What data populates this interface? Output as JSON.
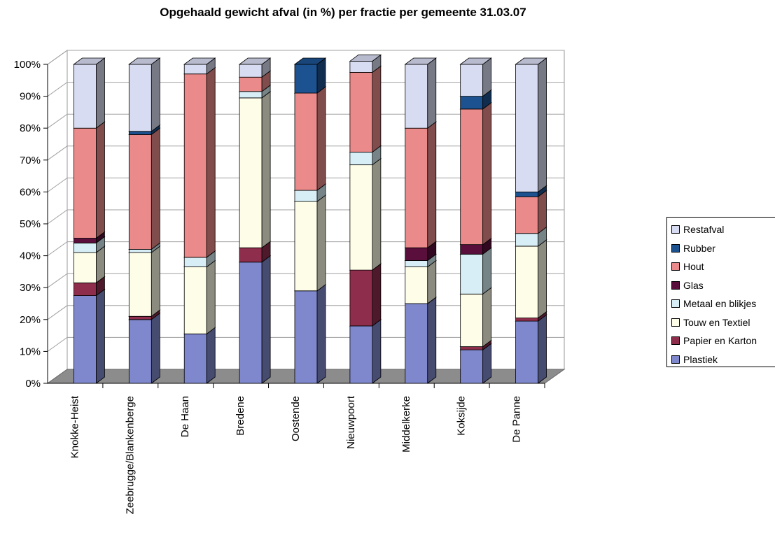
{
  "chart_data": {
    "type": "bar",
    "stacked": true,
    "title": "Opgehaald gewicht afval (in %) per fractie per gemeente 31.03.07",
    "xlabel": "",
    "ylabel": "",
    "ylim": [
      0,
      100
    ],
    "y_ticks": [
      "0%",
      "10%",
      "20%",
      "30%",
      "40%",
      "50%",
      "60%",
      "70%",
      "80%",
      "90%",
      "100%"
    ],
    "grid": true,
    "legend_position": "right",
    "categories": [
      "Knokke-Heist",
      "Zeebrugge/Blankenberge",
      "De Haan",
      "Bredene",
      "Oostende",
      "Nieuwpoort",
      "Middelkerke",
      "Koksijde",
      "De Panne"
    ],
    "series": [
      {
        "name": "Plastiek",
        "color": "#7f88cc",
        "values": [
          27.5,
          20,
          15.5,
          38,
          29,
          18,
          25,
          10.5,
          19.5
        ]
      },
      {
        "name": "Papier en Karton",
        "color": "#8e2e4c",
        "values": [
          4,
          1,
          0,
          4.5,
          0,
          17.5,
          0,
          1,
          1
        ]
      },
      {
        "name": "Touw en Textiel",
        "color": "#fefde8",
        "values": [
          9.5,
          20,
          21,
          47,
          28,
          33,
          11.5,
          16.5,
          22.5
        ]
      },
      {
        "name": "Metaal en blikjes",
        "color": "#d7eef6",
        "values": [
          3,
          1,
          3,
          2,
          3.5,
          4,
          2,
          12.5,
          4
        ]
      },
      {
        "name": "Glas",
        "color": "#5a0e3c",
        "values": [
          1.5,
          0,
          0,
          0,
          0,
          0,
          4,
          3,
          0
        ]
      },
      {
        "name": "Hout",
        "color": "#ea8a8a",
        "values": [
          34.5,
          36,
          57.5,
          4.5,
          30.5,
          25,
          37.5,
          42.5,
          11.5
        ]
      },
      {
        "name": "Rubber",
        "color": "#1d5290",
        "values": [
          0,
          1,
          0,
          0,
          9,
          0,
          0,
          4,
          1.5
        ]
      },
      {
        "name": "Restafval",
        "color": "#d8dcf2",
        "values": [
          20,
          21,
          3,
          4,
          0,
          3.5,
          20,
          10,
          40
        ]
      }
    ]
  }
}
